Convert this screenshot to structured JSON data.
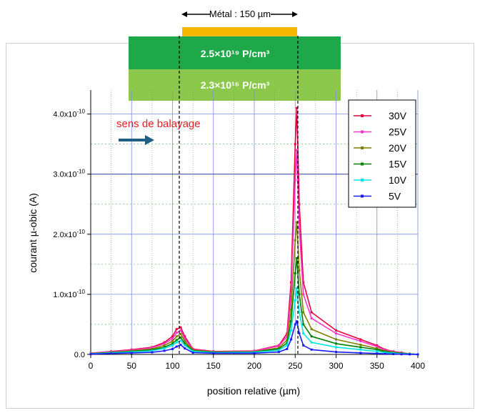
{
  "structure": {
    "metal_label": "Métal : 150 µm",
    "layer_top_label": "2.5×10¹⁹ P/cm³",
    "layer_bottom_label": "2.3×10¹⁵ P/cm³",
    "colors": {
      "metal": "#f5b800",
      "layer_top": "#1ea84a",
      "layer_bottom": "#8cc84b"
    }
  },
  "annotation": {
    "scan_text": "sens de balayage",
    "scan_color": "#e31e24",
    "arrow_color": "#1f5f86"
  },
  "chart_data": {
    "type": "line",
    "xlabel": "position relative (µm)",
    "ylabel": "courant µ-obic (A)",
    "xlim": [
      0,
      400
    ],
    "ylim": [
      0,
      4.4e-10
    ],
    "x_ticks": [
      0,
      50,
      100,
      150,
      200,
      250,
      300,
      350,
      400
    ],
    "y_ticks": [
      {
        "value": 0,
        "label": "0.0"
      },
      {
        "value": 1e-10,
        "label": "1.0x10-10"
      },
      {
        "value": 2e-10,
        "label": "2.0x10-10"
      },
      {
        "value": 3e-10,
        "label": "3.0x10-10"
      },
      {
        "value": 4e-10,
        "label": "4.0x10-10"
      }
    ],
    "grid": true,
    "legend_position": "top-right",
    "x": [
      0,
      25,
      50,
      75,
      90,
      100,
      105,
      110,
      115,
      125,
      150,
      200,
      230,
      240,
      245,
      250,
      252,
      255,
      260,
      270,
      300,
      330,
      350,
      360,
      370,
      380,
      390,
      400
    ],
    "series": [
      {
        "name": "30V",
        "color": "#e8003d",
        "values": [
          2e-12,
          5e-12,
          8e-12,
          1.2e-11,
          2e-11,
          3e-11,
          4.2e-11,
          4.5e-11,
          3e-11,
          9e-12,
          5e-12,
          6e-12,
          1.5e-11,
          3.5e-11,
          1.2e-10,
          3.5e-10,
          4.1e-10,
          2.5e-10,
          1.2e-10,
          7e-11,
          4e-11,
          2.5e-11,
          1.5e-11,
          8e-12,
          5e-12,
          3e-12,
          1e-12,
          0
        ]
      },
      {
        "name": "25V",
        "color": "#ff33cc",
        "values": [
          2e-12,
          4.5e-12,
          7e-12,
          1.1e-11,
          1.8e-11,
          2.6e-11,
          3.6e-11,
          4e-11,
          2.6e-11,
          8e-12,
          4.5e-12,
          5.5e-12,
          1.4e-11,
          3e-11,
          1e-10,
          2.9e-10,
          3.4e-10,
          2.1e-10,
          1e-10,
          6e-11,
          3.5e-11,
          2.2e-11,
          1.3e-11,
          7e-12,
          4.5e-12,
          2.5e-12,
          1e-12,
          0
        ]
      },
      {
        "name": "20V",
        "color": "#808000",
        "values": [
          1.5e-12,
          3.5e-12,
          6e-12,
          9e-12,
          1.5e-11,
          2.2e-11,
          3e-11,
          3.4e-11,
          2.2e-11,
          7e-12,
          4e-12,
          4.5e-12,
          1.1e-11,
          2.4e-11,
          7.5e-11,
          1.9e-10,
          2.2e-10,
          1.4e-10,
          7e-11,
          4.2e-11,
          2.5e-11,
          1.6e-11,
          1e-11,
          5.5e-12,
          3.5e-12,
          2e-12,
          1e-12,
          0
        ]
      },
      {
        "name": "15V",
        "color": "#008000",
        "values": [
          1.2e-12,
          3e-12,
          5e-12,
          7.5e-12,
          1.2e-11,
          1.8e-11,
          2.4e-11,
          2.8e-11,
          1.8e-11,
          6e-12,
          3.5e-12,
          4e-12,
          9e-12,
          1.9e-11,
          5.5e-11,
          1.35e-10,
          1.6e-10,
          1e-10,
          5e-11,
          3e-11,
          1.8e-11,
          1.2e-11,
          8e-12,
          4.5e-12,
          3e-12,
          1.5e-12,
          8e-13,
          0
        ]
      },
      {
        "name": "10V",
        "color": "#00e6e6",
        "values": [
          1e-12,
          2.5e-12,
          4e-12,
          6e-12,
          1e-11,
          1.5e-11,
          2e-11,
          2.3e-11,
          1.5e-11,
          5e-12,
          3e-12,
          3.5e-12,
          7e-12,
          1.5e-11,
          4e-11,
          9e-11,
          1.1e-10,
          7e-11,
          3.5e-11,
          2e-11,
          1.2e-11,
          8e-12,
          5e-12,
          3e-12,
          2e-12,
          1e-12,
          5e-13,
          0
        ]
      },
      {
        "name": "5V",
        "color": "#1a1aff",
        "values": [
          5e-13,
          1.5e-12,
          2.5e-12,
          3.5e-12,
          6e-12,
          9e-12,
          1.3e-11,
          1.6e-11,
          1e-11,
          3e-12,
          2e-12,
          2e-12,
          4e-12,
          9e-12,
          2.5e-11,
          5e-11,
          5.5e-11,
          3.5e-11,
          1.5e-11,
          8e-12,
          4e-12,
          2.5e-12,
          1.5e-12,
          1e-12,
          6e-13,
          3e-13,
          1e-13,
          0
        ]
      }
    ]
  }
}
